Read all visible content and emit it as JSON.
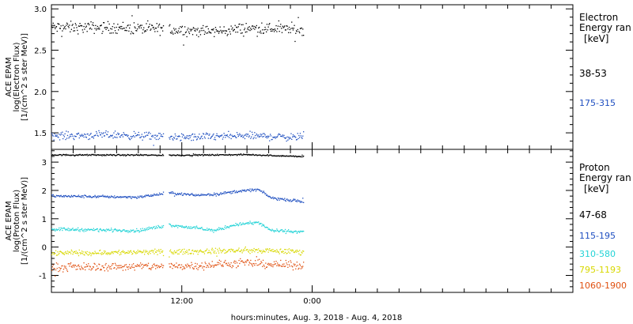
{
  "x_axis": {
    "title": "hours:minutes, Aug.  3, 2018 - Aug.  4, 2018",
    "range_hours": [
      0,
      48
    ],
    "ticks": [
      {
        "hour": 12,
        "label": "12:00"
      },
      {
        "hour": 24,
        "label": "0:00"
      }
    ],
    "minor_step_hours": 2
  },
  "panels": [
    {
      "id": "electron",
      "ylabel_lines": [
        "ACE EPAM",
        "log(Electron Flux)",
        "[1/(cm^2 s ster MeV)]"
      ],
      "ylim": [
        1.3,
        3.05
      ],
      "yticks": [
        {
          "v": 1.5,
          "label": "1.5"
        },
        {
          "v": 2.0,
          "label": "2.0"
        },
        {
          "v": 2.5,
          "label": "2.5"
        },
        {
          "v": 3.0,
          "label": "3.0"
        }
      ],
      "legend": {
        "title_lines": [
          "Electron",
          "Energy ran",
          "[keV]"
        ],
        "entries": [
          {
            "label": "38-53",
            "color": "#000000"
          },
          {
            "label": "175-315",
            "color": "#1f4fc0"
          }
        ]
      }
    },
    {
      "id": "proton",
      "ylabel_lines": [
        "ACE EPAM",
        "log(Proton Flux)",
        "[1/(cm^2 s ster MeV)]"
      ],
      "ylim": [
        -1.6,
        3.45
      ],
      "yticks": [
        {
          "v": -1,
          "label": "-1"
        },
        {
          "v": 0,
          "label": "0"
        },
        {
          "v": 1,
          "label": "1"
        },
        {
          "v": 2,
          "label": "2"
        },
        {
          "v": 3,
          "label": "3"
        }
      ],
      "legend": {
        "title_lines": [
          "Proton",
          "Energy ran",
          "[keV]"
        ],
        "entries": [
          {
            "label": "47-68",
            "color": "#000000"
          },
          {
            "label": "115-195",
            "color": "#1f4fc0"
          },
          {
            "label": "310-580",
            "color": "#22d3d6"
          },
          {
            "label": "795-1193",
            "color": "#d8d800"
          },
          {
            "label": "1060-1900",
            "color": "#e05010"
          }
        ]
      }
    }
  ],
  "chart_data": {
    "type": "scatter",
    "x_units": "hours since Aug. 3, 2018 0:00",
    "data_gap_hours": [
      10.3,
      10.8
    ],
    "data_end_hours": 23.2,
    "panels": [
      {
        "id": "electron",
        "series": [
          {
            "name": "38-53",
            "color": "#000000",
            "level": 2.77,
            "noise": 0.06,
            "profile": [
              [
                0,
                2.78
              ],
              [
                6,
                2.78
              ],
              [
                12,
                2.75
              ],
              [
                15,
                2.73
              ],
              [
                18,
                2.77
              ],
              [
                23.2,
                2.76
              ]
            ]
          },
          {
            "name": "175-315",
            "color": "#1f4fc0",
            "level": 1.47,
            "noise": 0.04,
            "profile": [
              [
                0,
                1.47
              ],
              [
                6,
                1.48
              ],
              [
                12,
                1.45
              ],
              [
                18,
                1.47
              ],
              [
                23.2,
                1.45
              ]
            ]
          }
        ]
      },
      {
        "id": "proton",
        "series": [
          {
            "name": "47-68",
            "color": "#000000",
            "noise": 0.02,
            "profile": [
              [
                0,
                3.27
              ],
              [
                12,
                3.26
              ],
              [
                18,
                3.28
              ],
              [
                23.2,
                3.21
              ]
            ]
          },
          {
            "name": "115-195",
            "color": "#1f4fc0",
            "noise": 0.04,
            "profile": [
              [
                0,
                1.82
              ],
              [
                8,
                1.78
              ],
              [
                10.8,
                1.93
              ],
              [
                13,
                1.85
              ],
              [
                15,
                1.88
              ],
              [
                17,
                1.98
              ],
              [
                19,
                2.05
              ],
              [
                20.2,
                1.75
              ],
              [
                23.2,
                1.62
              ]
            ]
          },
          {
            "name": "310-580",
            "color": "#22d3d6",
            "noise": 0.05,
            "profile": [
              [
                0,
                0.65
              ],
              [
                8,
                0.6
              ],
              [
                10.8,
                0.8
              ],
              [
                13,
                0.7
              ],
              [
                15,
                0.6
              ],
              [
                17,
                0.82
              ],
              [
                19,
                0.88
              ],
              [
                20.2,
                0.6
              ],
              [
                23.2,
                0.55
              ]
            ]
          },
          {
            "name": "795-1193",
            "color": "#d8d800",
            "noise": 0.08,
            "profile": [
              [
                0,
                -0.2
              ],
              [
                12,
                -0.15
              ],
              [
                18,
                -0.1
              ],
              [
                23.2,
                -0.15
              ]
            ]
          },
          {
            "name": "1060-1900",
            "color": "#e05010",
            "noise": 0.12,
            "profile": [
              [
                0,
                -0.7
              ],
              [
                12,
                -0.65
              ],
              [
                18,
                -0.55
              ],
              [
                23.2,
                -0.65
              ]
            ]
          }
        ]
      }
    ]
  }
}
